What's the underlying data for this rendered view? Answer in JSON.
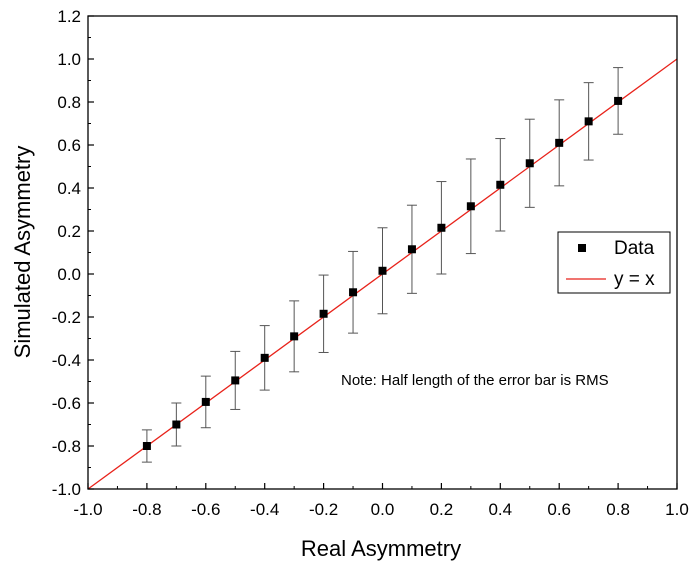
{
  "chart_data": {
    "type": "scatter",
    "xlabel": "Real Asymmetry",
    "ylabel": "Simulated Asymmetry",
    "xlim": [
      -1.0,
      1.0
    ],
    "ylim": [
      -1.0,
      1.2
    ],
    "xticks": [
      "-1.0",
      "-0.8",
      "-0.6",
      "-0.4",
      "-0.2",
      "0.0",
      "0.2",
      "0.4",
      "0.6",
      "0.8",
      "1.0"
    ],
    "yticks": [
      "-1.0",
      "-0.8",
      "-0.6",
      "-0.4",
      "-0.2",
      "0.0",
      "0.2",
      "0.4",
      "0.6",
      "0.8",
      "1.0",
      "1.2"
    ],
    "xtick_values": [
      -1.0,
      -0.8,
      -0.6,
      -0.4,
      -0.2,
      0.0,
      0.2,
      0.4,
      0.6,
      0.8,
      1.0
    ],
    "ytick_values": [
      -1.0,
      -0.8,
      -0.6,
      -0.4,
      -0.2,
      0.0,
      0.2,
      0.4,
      0.6,
      0.8,
      1.0,
      1.2
    ],
    "grid": false,
    "series": [
      {
        "name": "Data",
        "kind": "points-with-error",
        "color": "#000000",
        "x": [
          -0.8,
          -0.7,
          -0.6,
          -0.5,
          -0.4,
          -0.3,
          -0.2,
          -0.1,
          0.0,
          0.1,
          0.2,
          0.3,
          0.4,
          0.5,
          0.6,
          0.7,
          0.8
        ],
        "y": [
          -0.8,
          -0.7,
          -0.595,
          -0.495,
          -0.39,
          -0.29,
          -0.185,
          -0.085,
          0.015,
          0.115,
          0.215,
          0.315,
          0.415,
          0.515,
          0.61,
          0.71,
          0.805
        ],
        "error": [
          0.075,
          0.1,
          0.12,
          0.135,
          0.15,
          0.165,
          0.18,
          0.19,
          0.2,
          0.205,
          0.215,
          0.22,
          0.215,
          0.205,
          0.2,
          0.18,
          0.155
        ]
      },
      {
        "name": "y = x",
        "kind": "line",
        "color": "#e8221a",
        "x": [
          -1.0,
          1.0
        ],
        "y": [
          -1.0,
          1.0
        ]
      }
    ],
    "legend": {
      "position": "right",
      "entries": [
        "Data",
        "y = x"
      ]
    },
    "annotation": "Note: Half length of the error bar is RMS"
  }
}
